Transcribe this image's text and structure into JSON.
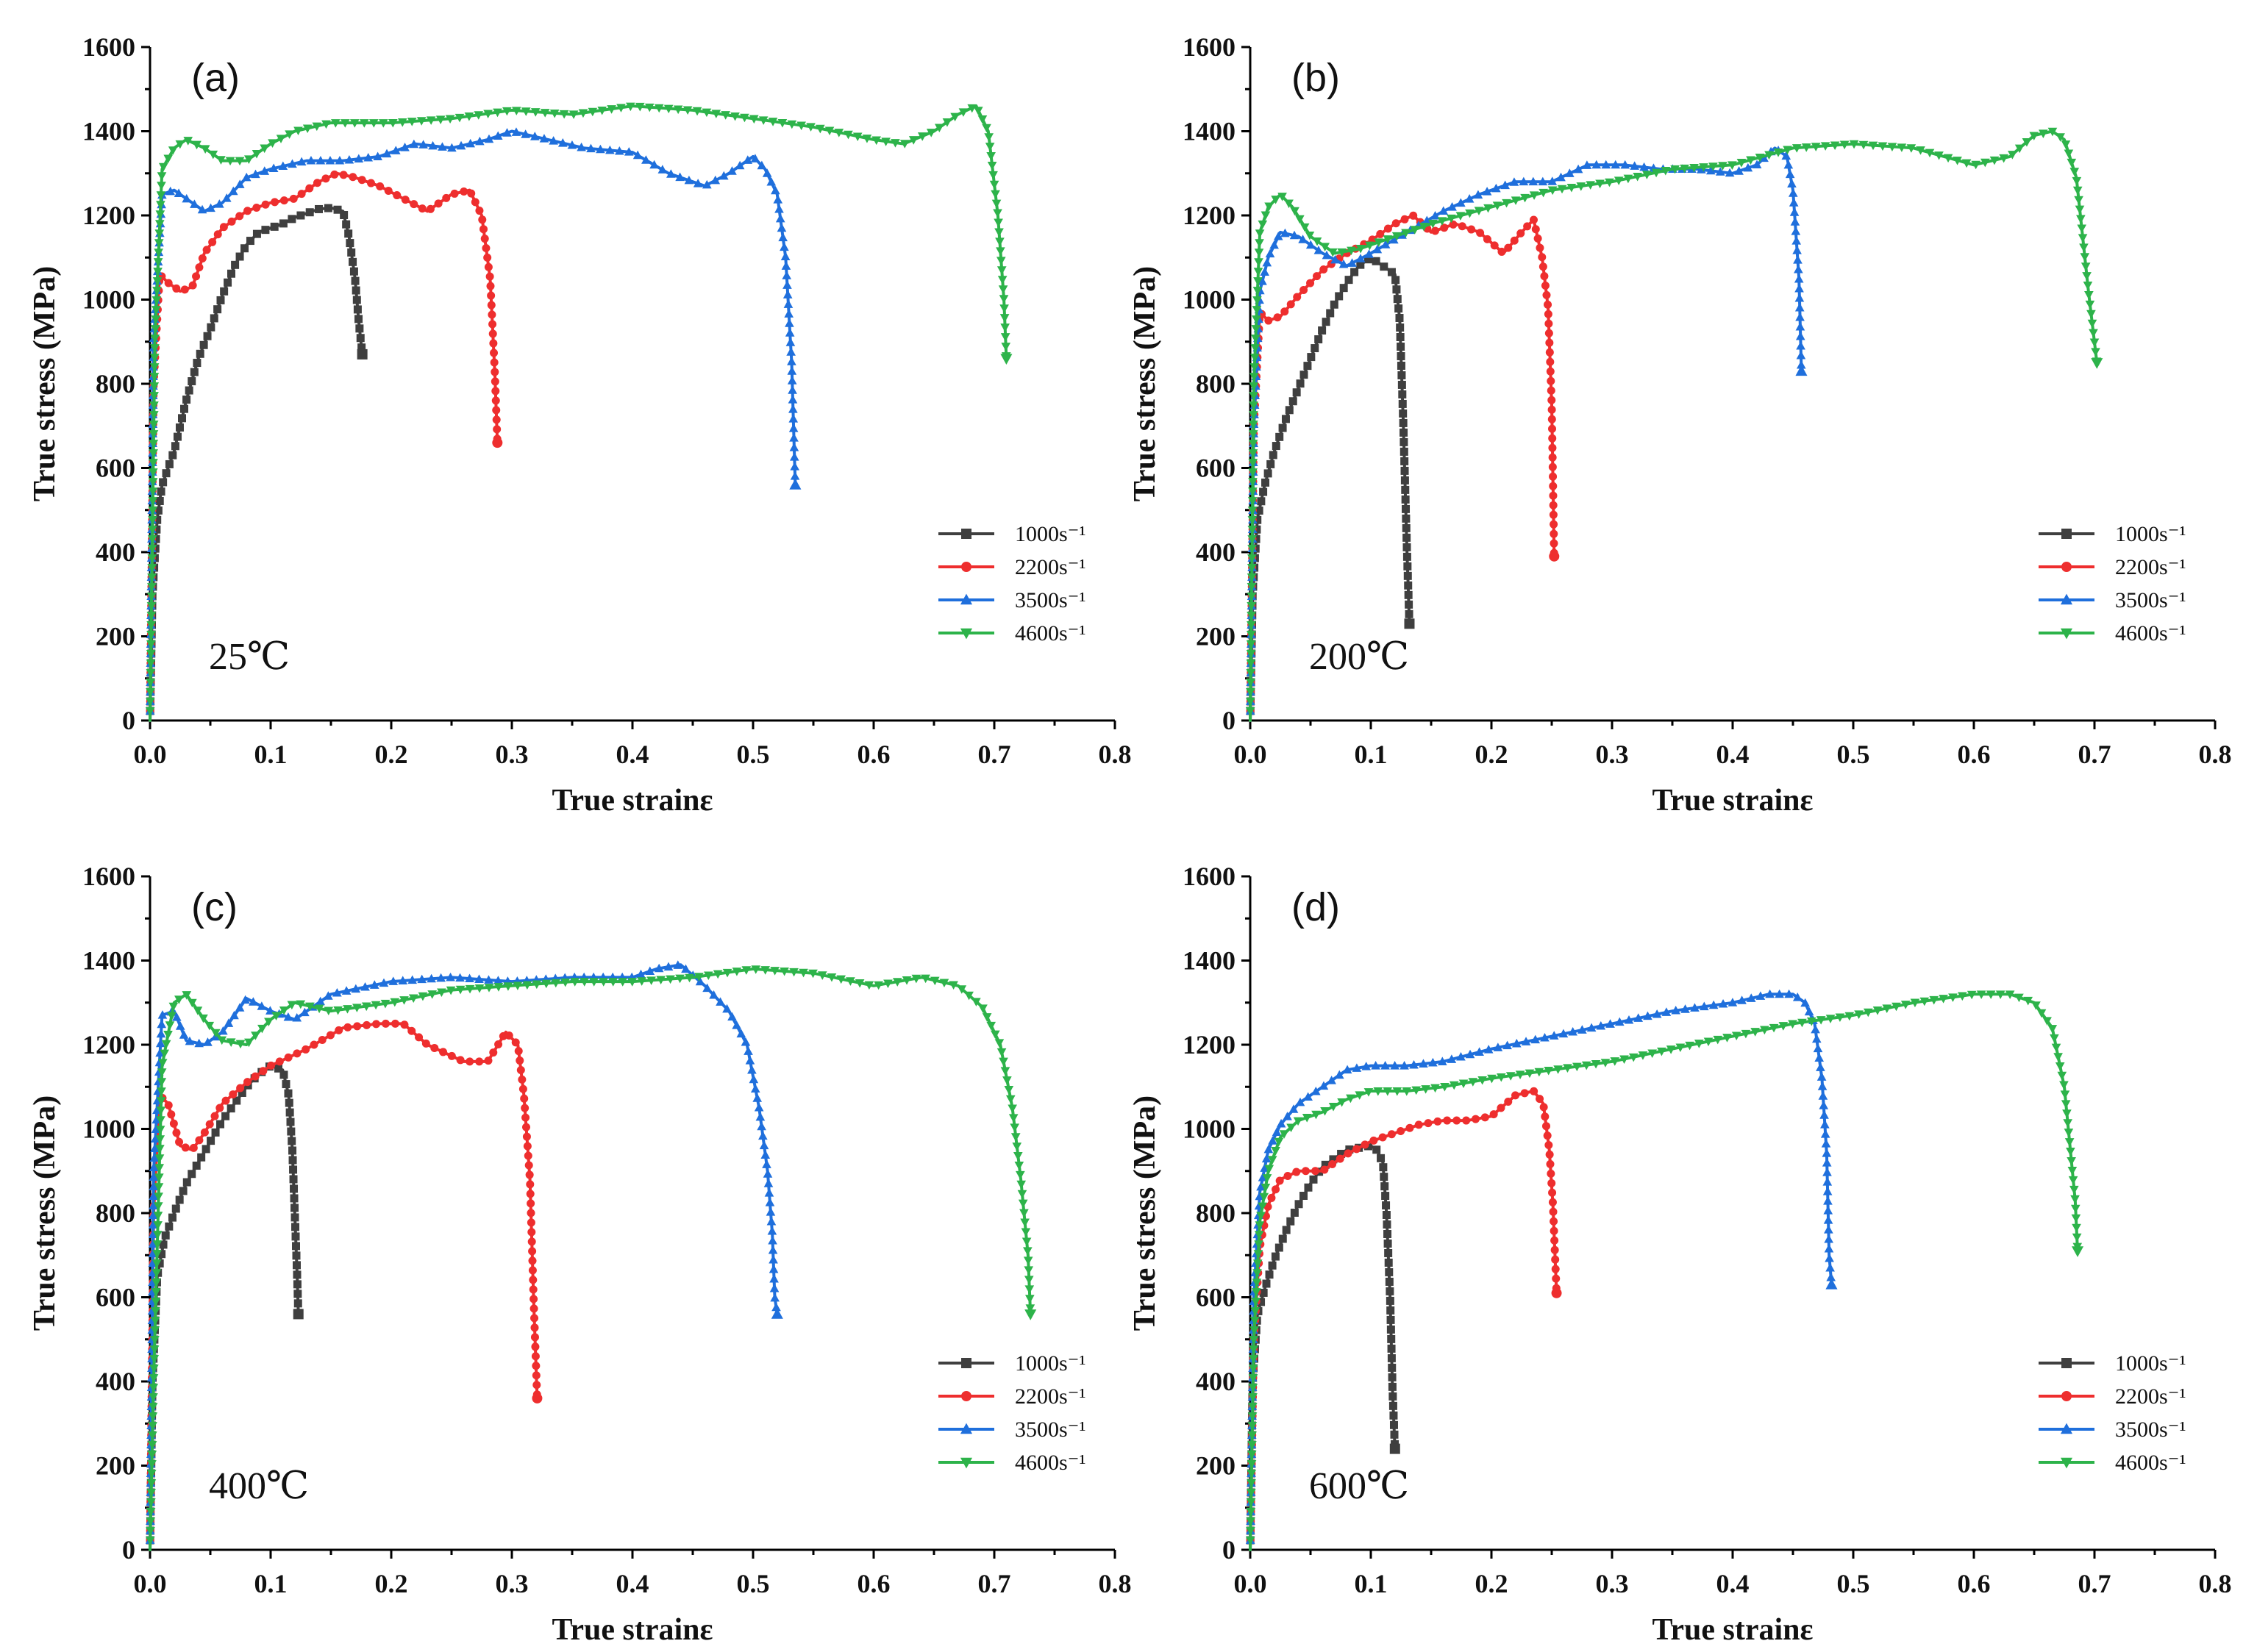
{
  "figure": {
    "colors": [
      "#3f3f3f",
      "#ee2e2e",
      "#1f6fdc",
      "#2db34a"
    ],
    "markers": [
      "square",
      "circle",
      "triangle-up",
      "triangle-down"
    ]
  },
  "chart_data": [
    {
      "type": "line",
      "panel_label": "(a)",
      "temperature": "25℃",
      "xlabel": "True strainε",
      "ylabel": "True stress (MPa)",
      "xlim": [
        0,
        0.8
      ],
      "ylim": [
        0,
        1600
      ],
      "xticks": [
        "0.0",
        "0.1",
        "0.2",
        "0.3",
        "0.4",
        "0.5",
        "0.6",
        "0.7",
        "0.8"
      ],
      "yticks": [
        "0",
        "200",
        "400",
        "600",
        "800",
        "1000",
        "1200",
        "1400",
        "1600"
      ],
      "legend_position": "bottom-right",
      "series": [
        {
          "name": "1000s⁻¹",
          "x": [
            0.0,
            0.002,
            0.006,
            0.01,
            0.02,
            0.03,
            0.04,
            0.05,
            0.06,
            0.07,
            0.08,
            0.09,
            0.1,
            0.11,
            0.12,
            0.13,
            0.14,
            0.15,
            0.16,
            0.165,
            0.17,
            0.173,
            0.176
          ],
          "y": [
            0,
            300,
            480,
            560,
            640,
            760,
            860,
            930,
            1010,
            1080,
            1130,
            1160,
            1170,
            1180,
            1195,
            1205,
            1215,
            1218,
            1210,
            1150,
            1050,
            950,
            870
          ]
        },
        {
          "name": "2200s⁻¹",
          "x": [
            0.0,
            0.003,
            0.008,
            0.015,
            0.025,
            0.035,
            0.045,
            0.06,
            0.08,
            0.1,
            0.12,
            0.14,
            0.155,
            0.17,
            0.19,
            0.21,
            0.23,
            0.25,
            0.265,
            0.275,
            0.282,
            0.286,
            0.288
          ],
          "y": [
            0,
            800,
            1060,
            1040,
            1020,
            1030,
            1110,
            1170,
            1210,
            1230,
            1240,
            1280,
            1300,
            1290,
            1270,
            1240,
            1210,
            1250,
            1260,
            1200,
            1050,
            820,
            660
          ]
        },
        {
          "name": "3500s⁻¹",
          "x": [
            0.0,
            0.003,
            0.01,
            0.02,
            0.03,
            0.045,
            0.06,
            0.08,
            0.1,
            0.13,
            0.16,
            0.19,
            0.22,
            0.25,
            0.28,
            0.3,
            0.33,
            0.36,
            0.4,
            0.43,
            0.46,
            0.48,
            0.5,
            0.51,
            0.52,
            0.527,
            0.532,
            0.535
          ],
          "y": [
            0,
            900,
            1250,
            1260,
            1240,
            1210,
            1230,
            1290,
            1310,
            1330,
            1330,
            1340,
            1370,
            1360,
            1380,
            1400,
            1380,
            1360,
            1350,
            1300,
            1270,
            1300,
            1340,
            1310,
            1250,
            1100,
            850,
            560
          ]
        },
        {
          "name": "4600s⁻¹",
          "x": [
            0.0,
            0.004,
            0.01,
            0.02,
            0.03,
            0.045,
            0.06,
            0.08,
            0.1,
            0.12,
            0.15,
            0.2,
            0.25,
            0.3,
            0.35,
            0.4,
            0.45,
            0.5,
            0.55,
            0.6,
            0.625,
            0.65,
            0.67,
            0.685,
            0.695,
            0.703,
            0.708,
            0.71
          ],
          "y": [
            0,
            900,
            1310,
            1360,
            1380,
            1360,
            1330,
            1330,
            1370,
            1400,
            1420,
            1420,
            1430,
            1450,
            1440,
            1460,
            1450,
            1430,
            1410,
            1380,
            1370,
            1400,
            1440,
            1460,
            1400,
            1200,
            1000,
            860
          ]
        }
      ]
    },
    {
      "type": "line",
      "panel_label": "(b)",
      "temperature": "200℃",
      "xlabel": "True strainε",
      "ylabel": "True stress (MPa)",
      "xlim": [
        0,
        0.8
      ],
      "ylim": [
        0,
        1600
      ],
      "xticks": [
        "0.0",
        "0.1",
        "0.2",
        "0.3",
        "0.4",
        "0.5",
        "0.6",
        "0.7",
        "0.8"
      ],
      "yticks": [
        "0",
        "200",
        "400",
        "600",
        "800",
        "1000",
        "1200",
        "1400",
        "1600"
      ],
      "legend_position": "bottom-right",
      "series": [
        {
          "name": "1000s⁻¹",
          "x": [
            0.0,
            0.002,
            0.006,
            0.012,
            0.02,
            0.03,
            0.04,
            0.05,
            0.06,
            0.07,
            0.08,
            0.09,
            0.1,
            0.105,
            0.11,
            0.115,
            0.12,
            0.124,
            0.127,
            0.13,
            0.132
          ],
          "y": [
            0,
            300,
            480,
            560,
            640,
            720,
            790,
            860,
            930,
            990,
            1040,
            1080,
            1100,
            1090,
            1080,
            1070,
            1060,
            950,
            700,
            400,
            230
          ]
        },
        {
          "name": "2200s⁻¹",
          "x": [
            0.0,
            0.003,
            0.008,
            0.015,
            0.025,
            0.04,
            0.06,
            0.08,
            0.1,
            0.12,
            0.135,
            0.15,
            0.17,
            0.19,
            0.21,
            0.225,
            0.235,
            0.242,
            0.247,
            0.25,
            0.252
          ],
          "y": [
            0,
            700,
            970,
            950,
            960,
            1010,
            1070,
            1110,
            1140,
            1180,
            1200,
            1160,
            1180,
            1160,
            1110,
            1160,
            1190,
            1100,
            980,
            750,
            390
          ]
        },
        {
          "name": "3500s⁻¹",
          "x": [
            0.0,
            0.003,
            0.008,
            0.015,
            0.025,
            0.04,
            0.06,
            0.08,
            0.1,
            0.13,
            0.16,
            0.19,
            0.22,
            0.25,
            0.28,
            0.31,
            0.34,
            0.37,
            0.4,
            0.42,
            0.435,
            0.445,
            0.45,
            0.455,
            0.457
          ],
          "y": [
            0,
            700,
            1020,
            1100,
            1160,
            1150,
            1110,
            1080,
            1110,
            1160,
            1210,
            1250,
            1280,
            1280,
            1320,
            1320,
            1310,
            1310,
            1300,
            1320,
            1360,
            1340,
            1260,
            1050,
            830
          ]
        },
        {
          "name": "4600s⁻¹",
          "x": [
            0.0,
            0.003,
            0.008,
            0.015,
            0.025,
            0.035,
            0.05,
            0.07,
            0.09,
            0.12,
            0.15,
            0.2,
            0.25,
            0.3,
            0.35,
            0.4,
            0.45,
            0.5,
            0.55,
            0.6,
            0.63,
            0.65,
            0.665,
            0.675,
            0.685,
            0.695,
            0.702
          ],
          "y": [
            0,
            800,
            1160,
            1220,
            1250,
            1220,
            1150,
            1110,
            1120,
            1150,
            1180,
            1220,
            1260,
            1280,
            1310,
            1320,
            1360,
            1370,
            1360,
            1320,
            1340,
            1390,
            1400,
            1380,
            1290,
            1020,
            850
          ]
        }
      ]
    },
    {
      "type": "line",
      "panel_label": "(c)",
      "temperature": "400℃",
      "xlabel": "True strainε",
      "ylabel": "True stress (MPa)",
      "xlim": [
        0,
        0.8
      ],
      "ylim": [
        0,
        1600
      ],
      "xticks": [
        "0.0",
        "0.1",
        "0.2",
        "0.3",
        "0.4",
        "0.5",
        "0.6",
        "0.7",
        "0.8"
      ],
      "yticks": [
        "0",
        "200",
        "400",
        "600",
        "800",
        "1000",
        "1200",
        "1400",
        "1600"
      ],
      "legend_position": "bottom-right",
      "series": [
        {
          "name": "1000s⁻¹",
          "x": [
            0.0,
            0.002,
            0.006,
            0.012,
            0.02,
            0.03,
            0.04,
            0.05,
            0.06,
            0.07,
            0.08,
            0.09,
            0.1,
            0.11,
            0.115,
            0.118,
            0.12,
            0.122,
            0.123
          ],
          "y": [
            0,
            400,
            650,
            740,
            800,
            870,
            920,
            970,
            1020,
            1060,
            1100,
            1130,
            1150,
            1140,
            1080,
            950,
            800,
            650,
            560
          ]
        },
        {
          "name": "2200s⁻¹",
          "x": [
            0.0,
            0.003,
            0.008,
            0.015,
            0.025,
            0.035,
            0.045,
            0.06,
            0.08,
            0.1,
            0.13,
            0.16,
            0.19,
            0.21,
            0.23,
            0.26,
            0.28,
            0.295,
            0.305,
            0.31,
            0.315,
            0.318,
            0.321
          ],
          "y": [
            0,
            800,
            1080,
            1060,
            960,
            950,
            990,
            1060,
            1110,
            1150,
            1190,
            1240,
            1250,
            1250,
            1200,
            1160,
            1160,
            1230,
            1200,
            1080,
            880,
            600,
            360
          ]
        },
        {
          "name": "3500s⁻¹",
          "x": [
            0.0,
            0.003,
            0.01,
            0.02,
            0.03,
            0.045,
            0.06,
            0.08,
            0.1,
            0.12,
            0.15,
            0.2,
            0.25,
            0.3,
            0.35,
            0.4,
            0.42,
            0.44,
            0.46,
            0.48,
            0.495,
            0.505,
            0.512,
            0.516,
            0.518,
            0.52
          ],
          "y": [
            0,
            900,
            1270,
            1280,
            1210,
            1200,
            1230,
            1310,
            1280,
            1260,
            1320,
            1350,
            1360,
            1350,
            1360,
            1360,
            1380,
            1390,
            1340,
            1280,
            1200,
            1050,
            900,
            750,
            600,
            560
          ]
        },
        {
          "name": "4600s⁻¹",
          "x": [
            0.0,
            0.003,
            0.01,
            0.02,
            0.03,
            0.045,
            0.06,
            0.08,
            0.1,
            0.12,
            0.15,
            0.2,
            0.25,
            0.3,
            0.35,
            0.4,
            0.45,
            0.5,
            0.55,
            0.6,
            0.64,
            0.67,
            0.69,
            0.705,
            0.715,
            0.722,
            0.728,
            0.73
          ],
          "y": [
            0,
            400,
            1150,
            1300,
            1320,
            1260,
            1210,
            1200,
            1260,
            1300,
            1280,
            1300,
            1330,
            1340,
            1350,
            1350,
            1360,
            1380,
            1370,
            1340,
            1360,
            1340,
            1290,
            1200,
            1050,
            880,
            700,
            560
          ]
        }
      ]
    },
    {
      "type": "line",
      "panel_label": "(d)",
      "temperature": "600℃",
      "xlabel": "True strainε",
      "ylabel": "True stress (MPa)",
      "xlim": [
        0,
        0.8
      ],
      "ylim": [
        0,
        1600
      ],
      "xticks": [
        "0.0",
        "0.1",
        "0.2",
        "0.3",
        "0.4",
        "0.5",
        "0.6",
        "0.7",
        "0.8"
      ],
      "yticks": [
        "0",
        "200",
        "400",
        "600",
        "800",
        "1000",
        "1200",
        "1400",
        "1600"
      ],
      "legend_position": "bottom-right",
      "series": [
        {
          "name": "1000s⁻¹",
          "x": [
            0.0,
            0.002,
            0.006,
            0.012,
            0.02,
            0.03,
            0.04,
            0.05,
            0.06,
            0.07,
            0.08,
            0.09,
            0.1,
            0.105,
            0.11,
            0.113,
            0.116,
            0.118,
            0.12
          ],
          "y": [
            0,
            400,
            560,
            620,
            690,
            760,
            820,
            870,
            910,
            930,
            950,
            955,
            960,
            950,
            920,
            800,
            600,
            380,
            240
          ]
        },
        {
          "name": "2200s⁻¹",
          "x": [
            0.0,
            0.003,
            0.008,
            0.015,
            0.025,
            0.04,
            0.06,
            0.08,
            0.1,
            0.12,
            0.14,
            0.16,
            0.18,
            0.2,
            0.22,
            0.235,
            0.243,
            0.248,
            0.251,
            0.253,
            0.254
          ],
          "y": [
            0,
            500,
            720,
            820,
            880,
            900,
            900,
            940,
            970,
            990,
            1010,
            1020,
            1020,
            1030,
            1080,
            1090,
            1060,
            950,
            820,
            680,
            610
          ]
        },
        {
          "name": "3500s⁻¹",
          "x": [
            0.0,
            0.003,
            0.008,
            0.015,
            0.025,
            0.04,
            0.06,
            0.08,
            0.1,
            0.13,
            0.16,
            0.2,
            0.25,
            0.3,
            0.35,
            0.4,
            0.43,
            0.45,
            0.46,
            0.468,
            0.474,
            0.478,
            0.48,
            0.482
          ],
          "y": [
            0,
            600,
            850,
            950,
            1010,
            1060,
            1100,
            1140,
            1150,
            1150,
            1160,
            1190,
            1220,
            1250,
            1280,
            1300,
            1320,
            1320,
            1300,
            1250,
            1120,
            940,
            700,
            630
          ]
        },
        {
          "name": "4600s⁻¹",
          "x": [
            0.0,
            0.003,
            0.008,
            0.015,
            0.025,
            0.04,
            0.06,
            0.08,
            0.1,
            0.13,
            0.16,
            0.2,
            0.25,
            0.3,
            0.35,
            0.4,
            0.45,
            0.5,
            0.55,
            0.6,
            0.63,
            0.65,
            0.665,
            0.675,
            0.68,
            0.684,
            0.686
          ],
          "y": [
            0,
            500,
            780,
            900,
            980,
            1020,
            1040,
            1070,
            1090,
            1090,
            1100,
            1120,
            1140,
            1160,
            1190,
            1220,
            1250,
            1270,
            1300,
            1320,
            1320,
            1300,
            1240,
            1100,
            950,
            830,
            710
          ]
        }
      ]
    }
  ]
}
